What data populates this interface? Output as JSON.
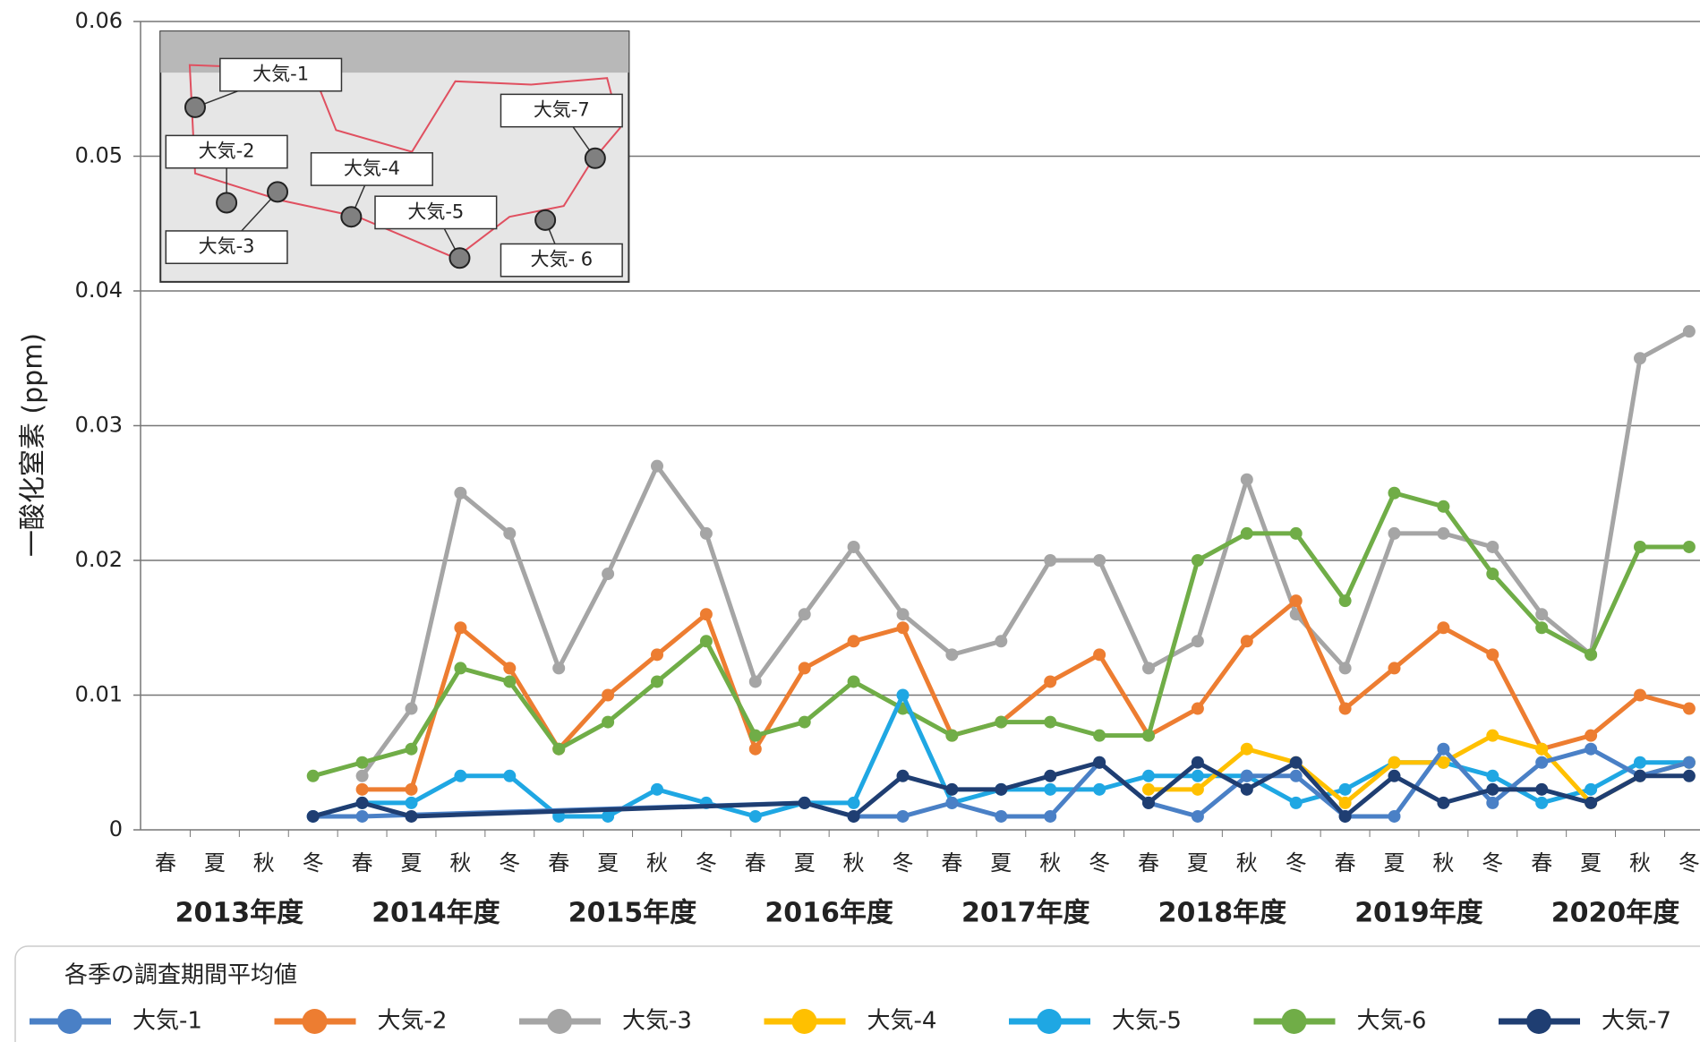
{
  "chart_data": {
    "type": "line",
    "y_label": "一酸化窒素 (ppm)",
    "categories": [
      "春",
      "夏",
      "秋",
      "冬",
      "春",
      "夏",
      "秋",
      "冬",
      "春",
      "夏",
      "秋",
      "冬",
      "春",
      "夏",
      "秋",
      "冬",
      "春",
      "夏",
      "秋",
      "冬",
      "春",
      "夏",
      "秋",
      "冬",
      "春",
      "夏",
      "秋",
      "冬",
      "春",
      "夏",
      "秋",
      "冬"
    ],
    "year_labels": [
      "2013年度",
      "2014年度",
      "2015年度",
      "2016年度",
      "2017年度",
      "2018年度",
      "2019年度",
      "2020年度"
    ],
    "ylim": [
      0,
      0.06
    ],
    "yticks": [
      0,
      0.01,
      0.02,
      0.03,
      0.04,
      0.05,
      0.06
    ],
    "grid": true,
    "span_gaps": true,
    "legend_title": "各季の調査期間平均値",
    "legend": "bottom",
    "series": [
      {
        "name": "大気-1",
        "color": "#4a80c6",
        "values": [
          null,
          null,
          null,
          0.001,
          0.001,
          null,
          null,
          null,
          null,
          null,
          null,
          null,
          null,
          0.002,
          0.001,
          0.001,
          0.002,
          0.001,
          0.001,
          0.005,
          0.002,
          0.001,
          0.004,
          0.004,
          0.001,
          0.001,
          0.006,
          0.002,
          0.005,
          0.006,
          0.004,
          0.005
        ]
      },
      {
        "name": "大気-2",
        "color": "#ed7d31",
        "values": [
          null,
          null,
          null,
          null,
          0.003,
          0.003,
          0.015,
          0.012,
          0.006,
          0.01,
          0.013,
          0.016,
          0.006,
          0.012,
          0.014,
          0.015,
          0.007,
          0.008,
          0.011,
          0.013,
          0.007,
          0.009,
          0.014,
          0.017,
          0.009,
          0.012,
          0.015,
          0.013,
          0.006,
          0.007,
          0.01,
          0.009
        ]
      },
      {
        "name": "大気-3",
        "color": "#a5a5a5",
        "values": [
          null,
          null,
          null,
          null,
          0.004,
          0.009,
          0.025,
          0.022,
          0.012,
          0.019,
          0.027,
          0.022,
          0.011,
          0.016,
          0.021,
          0.016,
          0.013,
          0.014,
          0.02,
          0.02,
          0.012,
          0.014,
          0.026,
          0.016,
          0.012,
          0.022,
          0.022,
          0.021,
          0.016,
          0.013,
          0.035,
          0.037
        ]
      },
      {
        "name": "大気-4",
        "color": "#ffc000",
        "values": [
          null,
          null,
          null,
          null,
          null,
          null,
          null,
          null,
          null,
          null,
          null,
          null,
          null,
          null,
          null,
          null,
          null,
          null,
          null,
          null,
          0.003,
          0.003,
          0.006,
          0.005,
          0.002,
          0.005,
          0.005,
          0.007,
          0.006,
          0.002,
          0.004,
          0.005
        ]
      },
      {
        "name": "大気-5",
        "color": "#1fa7e3",
        "values": [
          null,
          null,
          null,
          0.001,
          0.002,
          0.002,
          0.004,
          0.004,
          0.001,
          0.001,
          0.003,
          0.002,
          0.001,
          0.002,
          0.002,
          0.01,
          0.002,
          0.003,
          0.003,
          0.003,
          0.004,
          0.004,
          0.004,
          0.002,
          0.003,
          0.005,
          0.005,
          0.004,
          0.002,
          0.003,
          0.005,
          0.005
        ]
      },
      {
        "name": "大気-6",
        "color": "#70ad47",
        "values": [
          null,
          null,
          null,
          0.004,
          0.005,
          0.006,
          0.012,
          0.011,
          0.006,
          0.008,
          0.011,
          0.014,
          0.007,
          0.008,
          0.011,
          0.009,
          0.007,
          0.008,
          0.008,
          0.007,
          0.007,
          0.02,
          0.022,
          0.022,
          0.017,
          0.025,
          0.024,
          0.019,
          0.015,
          0.013,
          0.021,
          0.021
        ]
      },
      {
        "name": "大気-7",
        "color": "#1f3e72",
        "values": [
          null,
          null,
          null,
          0.001,
          0.002,
          0.001,
          null,
          null,
          null,
          null,
          null,
          null,
          null,
          0.002,
          0.001,
          0.004,
          0.003,
          0.003,
          0.004,
          0.005,
          0.002,
          0.005,
          0.003,
          0.005,
          0.001,
          0.004,
          0.002,
          0.003,
          0.003,
          0.002,
          0.004,
          0.004
        ]
      }
    ]
  },
  "map_labels": [
    "大気-1",
    "大気-2",
    "大気-3",
    "大気-4",
    "大気-5",
    "大気- 6",
    "大気-7"
  ]
}
